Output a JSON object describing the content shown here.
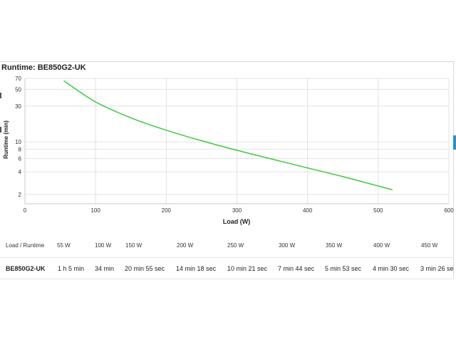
{
  "chart_data": {
    "type": "line",
    "title": "Runtime: BE850G2-UK",
    "xlabel": "Load (W)",
    "ylabel": "Runtime (min)",
    "xlim": [
      0,
      600
    ],
    "ylim": [
      1.5,
      70
    ],
    "yscale": "log",
    "x_ticks": [
      0,
      100,
      200,
      300,
      400,
      500,
      600
    ],
    "y_ticks": [
      2,
      4,
      6,
      8,
      10,
      30,
      50,
      70
    ],
    "grid": true,
    "series": [
      {
        "color": "#3cc83c",
        "points": [
          [
            55,
            65
          ],
          [
            100,
            34
          ],
          [
            150,
            20.9
          ],
          [
            200,
            14.3
          ],
          [
            250,
            10.35
          ],
          [
            300,
            7.73
          ],
          [
            350,
            5.88
          ],
          [
            400,
            4.5
          ],
          [
            450,
            3.45
          ],
          [
            520,
            2.3
          ]
        ]
      }
    ]
  },
  "table": {
    "header_label": "Load / Runtime",
    "model": "BE850G2-UK",
    "loads": [
      "55 W",
      "100 W",
      "150 W",
      "200 W",
      "250 W",
      "300 W",
      "350 W",
      "400 W",
      "450 W"
    ],
    "runtimes": [
      "1 h 5 min",
      "34 min",
      "20 min 55 sec",
      "14 min 18 sec",
      "10 min 21 sec",
      "7 min 44 sec",
      "5 min 53 sec",
      "4 min 30 sec",
      "3 min 26 sec"
    ]
  }
}
